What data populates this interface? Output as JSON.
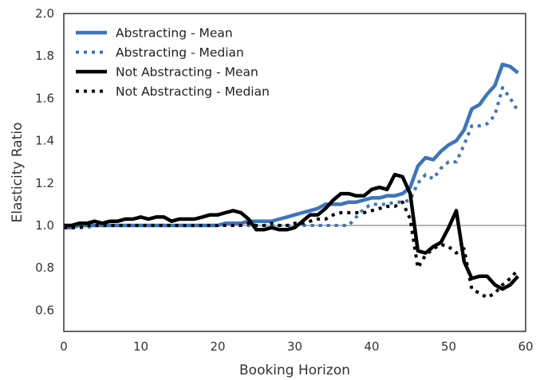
{
  "chart_data": {
    "type": "line",
    "xlabel": "Booking Horizon",
    "ylabel": "Elasticity Ratio",
    "xlim": [
      0,
      60
    ],
    "ylim": [
      0.5,
      2.0
    ],
    "xticks": [
      "0",
      "10",
      "20",
      "30",
      "40",
      "50",
      "60"
    ],
    "yticks": [
      "0.6",
      "0.8",
      "1.0",
      "1.2",
      "1.4",
      "1.6",
      "1.8",
      "2.0"
    ],
    "reference_line": 1.0,
    "grid": false,
    "legend": "top-left",
    "x": [
      0,
      1,
      2,
      3,
      4,
      5,
      6,
      7,
      8,
      9,
      10,
      11,
      12,
      13,
      14,
      15,
      16,
      17,
      18,
      19,
      20,
      21,
      22,
      23,
      24,
      25,
      26,
      27,
      28,
      29,
      30,
      31,
      32,
      33,
      34,
      35,
      36,
      37,
      38,
      39,
      40,
      41,
      42,
      43,
      44,
      45,
      46,
      47,
      48,
      49,
      50,
      51,
      52,
      53,
      54,
      55,
      56,
      57,
      58,
      59
    ],
    "series": [
      {
        "name": "Abstracting - Mean",
        "color": "#3b75be",
        "style": "solid",
        "values": [
          0.99,
          0.99,
          1.0,
          1.0,
          1.0,
          1.0,
          1.0,
          1.0,
          1.0,
          1.0,
          1.0,
          1.0,
          1.0,
          1.0,
          1.0,
          1.0,
          1.0,
          1.0,
          1.0,
          1.0,
          1.0,
          1.01,
          1.01,
          1.01,
          1.02,
          1.02,
          1.02,
          1.02,
          1.03,
          1.04,
          1.05,
          1.06,
          1.07,
          1.08,
          1.1,
          1.1,
          1.1,
          1.11,
          1.11,
          1.12,
          1.13,
          1.13,
          1.14,
          1.14,
          1.15,
          1.18,
          1.28,
          1.32,
          1.31,
          1.35,
          1.38,
          1.4,
          1.45,
          1.55,
          1.57,
          1.62,
          1.66,
          1.76,
          1.75,
          1.72
        ]
      },
      {
        "name": "Abstracting - Median",
        "color": "#3b75be",
        "style": "dotted",
        "values": [
          0.99,
          0.99,
          0.99,
          0.99,
          1.0,
          1.0,
          1.0,
          1.0,
          1.0,
          1.0,
          1.0,
          1.0,
          1.0,
          1.0,
          1.0,
          1.0,
          1.0,
          1.0,
          1.0,
          1.0,
          1.0,
          1.0,
          1.0,
          1.0,
          1.0,
          1.0,
          1.0,
          1.0,
          1.0,
          1.0,
          1.0,
          1.0,
          1.0,
          1.0,
          1.0,
          1.0,
          1.0,
          1.0,
          1.04,
          1.08,
          1.1,
          1.1,
          1.1,
          1.11,
          1.11,
          1.12,
          1.2,
          1.24,
          1.22,
          1.27,
          1.3,
          1.3,
          1.38,
          1.47,
          1.47,
          1.48,
          1.52,
          1.65,
          1.6,
          1.54
        ]
      },
      {
        "name": "Not Abstracting - Mean",
        "color": "#000000",
        "style": "solid",
        "values": [
          1.0,
          1.0,
          1.01,
          1.01,
          1.02,
          1.01,
          1.02,
          1.02,
          1.03,
          1.03,
          1.04,
          1.03,
          1.04,
          1.04,
          1.02,
          1.03,
          1.03,
          1.03,
          1.04,
          1.05,
          1.05,
          1.06,
          1.07,
          1.06,
          1.03,
          0.98,
          0.98,
          0.99,
          0.98,
          0.98,
          0.99,
          1.02,
          1.05,
          1.05,
          1.08,
          1.12,
          1.15,
          1.15,
          1.14,
          1.14,
          1.17,
          1.18,
          1.17,
          1.24,
          1.23,
          1.15,
          0.88,
          0.87,
          0.9,
          0.92,
          0.99,
          1.07,
          0.83,
          0.75,
          0.76,
          0.76,
          0.72,
          0.7,
          0.72,
          0.76
        ]
      },
      {
        "name": "Not Abstracting - Median",
        "color": "#000000",
        "style": "dotted",
        "values": [
          0.99,
          0.99,
          0.99,
          1.0,
          1.0,
          1.0,
          1.0,
          1.0,
          1.0,
          1.0,
          1.0,
          1.0,
          1.0,
          1.0,
          1.0,
          1.0,
          1.0,
          1.0,
          1.0,
          1.0,
          1.0,
          1.0,
          1.0,
          1.0,
          1.01,
          1.0,
          1.0,
          1.01,
          1.0,
          1.0,
          1.01,
          1.01,
          1.02,
          1.03,
          1.03,
          1.05,
          1.06,
          1.06,
          1.06,
          1.06,
          1.07,
          1.08,
          1.09,
          1.09,
          1.11,
          1.03,
          0.8,
          0.86,
          0.89,
          0.91,
          0.9,
          0.87,
          0.89,
          0.7,
          0.68,
          0.66,
          0.68,
          0.72,
          0.75,
          0.79
        ]
      }
    ]
  }
}
